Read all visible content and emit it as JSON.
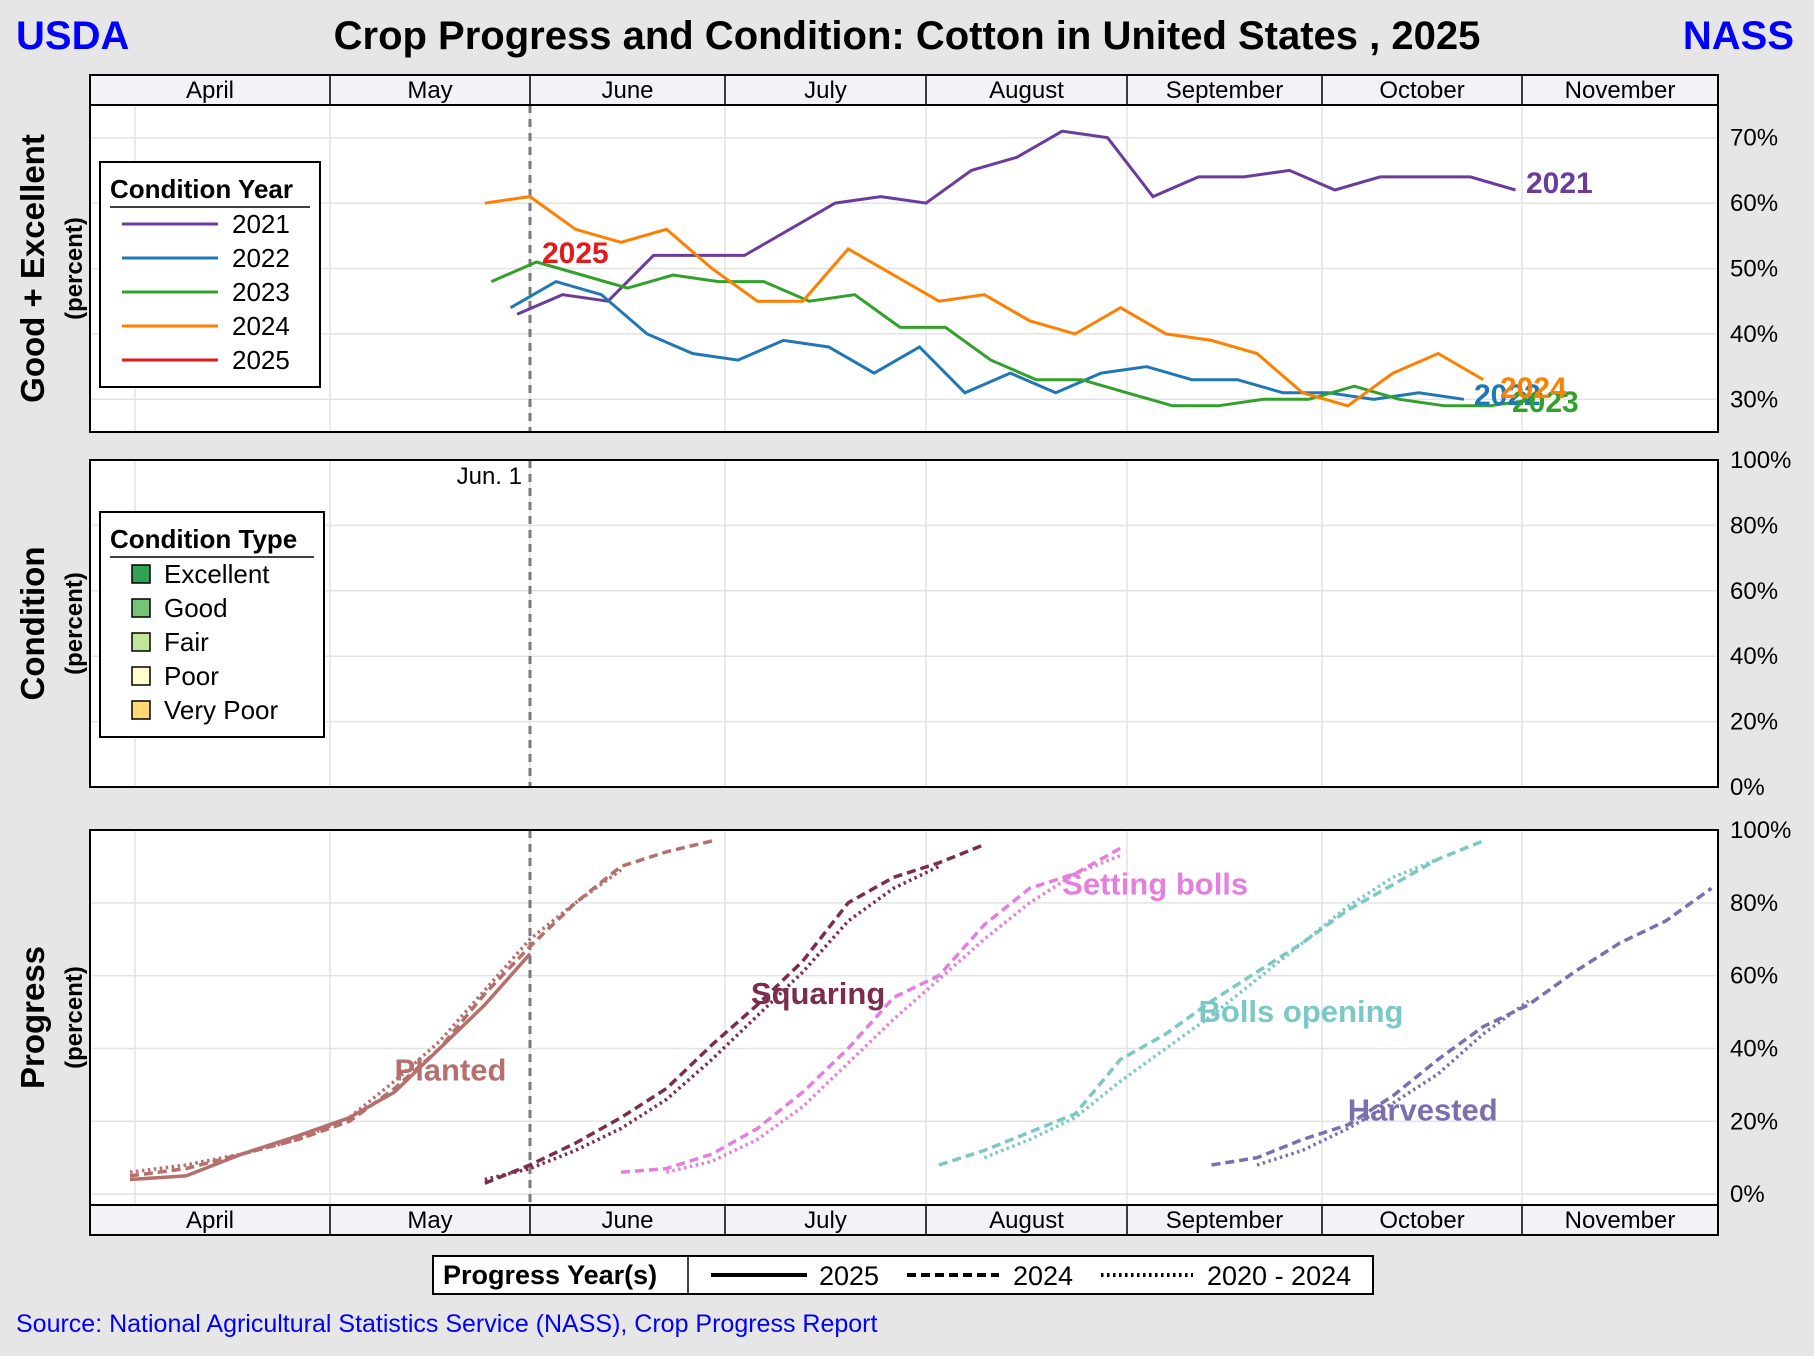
{
  "header": {
    "left_brand": "USDA",
    "right_brand": "NASS",
    "title": "Crop Progress and Condition: Cotton in United States , 2025"
  },
  "source": "Source: National Agricultural Statistics Service (NASS), Crop Progress Report",
  "colors": {
    "background": "#e6e6e6",
    "brand": "#0000ff",
    "y2021": "#6a3d9a",
    "y2022": "#1f78b4",
    "y2023": "#33a02c",
    "y2024": "#ff7f00",
    "y2025": "#e31a1c",
    "planted": "#b5706e",
    "squaring": "#7b2d4f",
    "setting_bolls": "#e47fe0",
    "bolls_opening": "#7bc8c6",
    "harvested": "#7b6fb0",
    "excellent": "#31a354",
    "good": "#74c476",
    "fair": "#c2e699",
    "poor": "#ffffcc",
    "very_poor": "#fed976"
  },
  "chart_data": [
    {
      "id": "good_excellent",
      "type": "line",
      "ylabel": "Good + Excellent",
      "ylabel_sub": "(percent)",
      "x_unit": "day of year",
      "ylim": [
        25,
        75
      ],
      "yticks": [
        30,
        40,
        50,
        60,
        70
      ],
      "ytick_labels": [
        "30%",
        "40%",
        "50%",
        "60%",
        "70%"
      ],
      "months": [
        "April",
        "May",
        "June",
        "July",
        "August",
        "September",
        "October",
        "November"
      ],
      "current_date_marker": 152,
      "legend": {
        "title": "Condition Year",
        "position": "upper-left",
        "entries": [
          "2021",
          "2022",
          "2023",
          "2024",
          "2025"
        ]
      },
      "series": [
        {
          "name": "2021",
          "color": "#6a3d9a",
          "end_label": "2021",
          "points": [
            [
              150,
              43
            ],
            [
              157,
              46
            ],
            [
              164,
              45
            ],
            [
              171,
              52
            ],
            [
              178,
              52
            ],
            [
              185,
              52
            ],
            [
              192,
              56
            ],
            [
              199,
              60
            ],
            [
              206,
              61
            ],
            [
              213,
              60
            ],
            [
              220,
              65
            ],
            [
              227,
              67
            ],
            [
              234,
              71
            ],
            [
              241,
              70
            ],
            [
              248,
              61
            ],
            [
              255,
              64
            ],
            [
              262,
              64
            ],
            [
              269,
              65
            ],
            [
              276,
              62
            ],
            [
              283,
              64
            ],
            [
              290,
              64
            ],
            [
              297,
              64
            ],
            [
              304,
              62
            ]
          ]
        },
        {
          "name": "2022",
          "color": "#1f78b4",
          "end_label": "2022",
          "points": [
            [
              149,
              44
            ],
            [
              156,
              48
            ],
            [
              163,
              46
            ],
            [
              170,
              40
            ],
            [
              177,
              37
            ],
            [
              184,
              36
            ],
            [
              191,
              39
            ],
            [
              198,
              38
            ],
            [
              205,
              34
            ],
            [
              212,
              38
            ],
            [
              219,
              31
            ],
            [
              226,
              34
            ],
            [
              233,
              31
            ],
            [
              240,
              34
            ],
            [
              247,
              35
            ],
            [
              254,
              33
            ],
            [
              261,
              33
            ],
            [
              268,
              31
            ],
            [
              275,
              31
            ],
            [
              282,
              30
            ],
            [
              289,
              31
            ],
            [
              296,
              30
            ]
          ]
        },
        {
          "name": "2023",
          "color": "#33a02c",
          "end_label": "2023",
          "points": [
            [
              146,
              48
            ],
            [
              153,
              51
            ],
            [
              160,
              49
            ],
            [
              167,
              47
            ],
            [
              174,
              49
            ],
            [
              181,
              48
            ],
            [
              188,
              48
            ],
            [
              195,
              45
            ],
            [
              202,
              46
            ],
            [
              209,
              41
            ],
            [
              216,
              41
            ],
            [
              223,
              36
            ],
            [
              230,
              33
            ],
            [
              237,
              33
            ],
            [
              244,
              31
            ],
            [
              251,
              29
            ],
            [
              258,
              29
            ],
            [
              265,
              30
            ],
            [
              272,
              30
            ],
            [
              279,
              32
            ],
            [
              286,
              30
            ],
            [
              293,
              29
            ],
            [
              300,
              29
            ],
            [
              307,
              30
            ]
          ]
        },
        {
          "name": "2024",
          "color": "#ff7f00",
          "end_label": "2024",
          "points": [
            [
              145,
              60
            ],
            [
              152,
              61
            ],
            [
              159,
              56
            ],
            [
              166,
              54
            ],
            [
              173,
              56
            ],
            [
              180,
              50
            ],
            [
              187,
              45
            ],
            [
              194,
              45
            ],
            [
              201,
              53
            ],
            [
              208,
              49
            ],
            [
              215,
              45
            ],
            [
              222,
              46
            ],
            [
              229,
              42
            ],
            [
              236,
              40
            ],
            [
              243,
              44
            ],
            [
              250,
              40
            ],
            [
              257,
              39
            ],
            [
              264,
              37
            ],
            [
              271,
              31
            ],
            [
              278,
              29
            ],
            [
              285,
              34
            ],
            [
              292,
              37
            ],
            [
              299,
              33
            ]
          ]
        },
        {
          "name": "2025",
          "color": "#e31a1c",
          "end_label": "2025",
          "points": []
        }
      ]
    },
    {
      "id": "condition",
      "type": "area",
      "ylabel": "Condition",
      "ylabel_sub": "(percent)",
      "ylim": [
        0,
        100
      ],
      "yticks": [
        0,
        20,
        40,
        60,
        80,
        100
      ],
      "ytick_labels": [
        "0%",
        "20%",
        "40%",
        "60%",
        "80%",
        "100%"
      ],
      "date_marker_label": "Jun.  1",
      "legend": {
        "title": "Condition Type",
        "position": "upper-left",
        "entries": [
          {
            "name": "Excellent",
            "color": "#31a354"
          },
          {
            "name": "Good",
            "color": "#74c476"
          },
          {
            "name": "Fair",
            "color": "#c2e699"
          },
          {
            "name": "Poor",
            "color": "#ffffcc"
          },
          {
            "name": "Very Poor",
            "color": "#fed976"
          }
        ]
      },
      "series": []
    },
    {
      "id": "progress",
      "type": "line",
      "ylabel": "Progress",
      "ylabel_sub": "(percent)",
      "ylim": [
        -3,
        100
      ],
      "yticks": [
        0,
        20,
        40,
        60,
        80,
        100
      ],
      "ytick_labels": [
        "0%",
        "20%",
        "40%",
        "60%",
        "80%",
        "100%"
      ],
      "months": [
        "April",
        "May",
        "June",
        "July",
        "August",
        "September",
        "October",
        "November"
      ],
      "legend": {
        "title": "Progress Year(s)",
        "position": "bottom",
        "entries": [
          {
            "name": "2025",
            "style": "solid"
          },
          {
            "name": "2024",
            "style": "dashed"
          },
          {
            "name": "2020 - 2024",
            "style": "dotted"
          }
        ]
      },
      "stages": [
        {
          "name": "Planted",
          "color": "#b5706e",
          "label_at": [
            131,
            34
          ],
          "y2025": [
            [
              96,
              4
            ],
            [
              103,
              5
            ],
            [
              110,
              11
            ],
            [
              117,
              16
            ],
            [
              124,
              21
            ],
            [
              131,
              28
            ],
            [
              138,
              40
            ],
            [
              145,
              52
            ],
            [
              152,
              66
            ]
          ],
          "y2024": [
            [
              96,
              5
            ],
            [
              103,
              7
            ],
            [
              110,
              11
            ],
            [
              117,
              15
            ],
            [
              124,
              20
            ],
            [
              131,
              29
            ],
            [
              138,
              40
            ],
            [
              145,
              55
            ],
            [
              152,
              68
            ],
            [
              159,
              80
            ],
            [
              166,
              90
            ],
            [
              173,
              94
            ],
            [
              180,
              97
            ]
          ],
          "avg": [
            [
              96,
              6
            ],
            [
              103,
              8
            ],
            [
              110,
              11
            ],
            [
              117,
              15
            ],
            [
              124,
              21
            ],
            [
              131,
              31
            ],
            [
              138,
              42
            ],
            [
              145,
              56
            ],
            [
              152,
              70
            ],
            [
              159,
              80
            ],
            [
              166,
              89
            ]
          ]
        },
        {
          "name": "Squaring",
          "color": "#7b2d4f",
          "label_at": [
            186,
            55
          ],
          "y2024": [
            [
              145,
              3
            ],
            [
              152,
              8
            ],
            [
              159,
              14
            ],
            [
              166,
              21
            ],
            [
              173,
              29
            ],
            [
              180,
              41
            ],
            [
              187,
              52
            ],
            [
              194,
              64
            ],
            [
              201,
              80
            ],
            [
              208,
              87
            ],
            [
              215,
              91
            ],
            [
              222,
              96
            ]
          ],
          "avg": [
            [
              145,
              4
            ],
            [
              152,
              7
            ],
            [
              159,
              12
            ],
            [
              166,
              18
            ],
            [
              173,
              26
            ],
            [
              180,
              37
            ],
            [
              187,
              49
            ],
            [
              194,
              61
            ],
            [
              201,
              75
            ],
            [
              208,
              84
            ],
            [
              215,
              90
            ]
          ]
        },
        {
          "name": "Setting bolls",
          "color": "#e47fe0",
          "label_at": [
            234,
            85
          ],
          "y2024": [
            [
              166,
              6
            ],
            [
              173,
              7
            ],
            [
              180,
              11
            ],
            [
              187,
              18
            ],
            [
              194,
              28
            ],
            [
              201,
              40
            ],
            [
              208,
              54
            ],
            [
              215,
              60
            ],
            [
              222,
              74
            ],
            [
              229,
              84
            ],
            [
              236,
              88
            ],
            [
              243,
              95
            ]
          ],
          "avg": [
            [
              173,
              6
            ],
            [
              180,
              9
            ],
            [
              187,
              15
            ],
            [
              194,
              24
            ],
            [
              201,
              36
            ],
            [
              208,
              48
            ],
            [
              215,
              59
            ],
            [
              222,
              70
            ],
            [
              229,
              80
            ],
            [
              236,
              88
            ],
            [
              243,
              93
            ]
          ]
        },
        {
          "name": "Bolls opening",
          "color": "#7bc8c6",
          "label_at": [
            255,
            50
          ],
          "y2024": [
            [
              215,
              8
            ],
            [
              222,
              12
            ],
            [
              229,
              17
            ],
            [
              236,
              22
            ],
            [
              243,
              37
            ],
            [
              250,
              44
            ],
            [
              257,
              53
            ],
            [
              264,
              61
            ],
            [
              271,
              69
            ],
            [
              278,
              78
            ],
            [
              285,
              85
            ],
            [
              292,
              92
            ],
            [
              299,
              97
            ]
          ],
          "avg": [
            [
              222,
              10
            ],
            [
              229,
              15
            ],
            [
              236,
              21
            ],
            [
              243,
              31
            ],
            [
              250,
              40
            ],
            [
              257,
              49
            ],
            [
              264,
              59
            ],
            [
              271,
              69
            ],
            [
              278,
              79
            ],
            [
              285,
              87
            ],
            [
              292,
              92
            ]
          ]
        },
        {
          "name": "Harvested",
          "color": "#7b6fb0",
          "label_at": [
            278,
            23
          ],
          "y2024": [
            [
              257,
              8
            ],
            [
              264,
              10
            ],
            [
              271,
              15
            ],
            [
              278,
              19
            ],
            [
              285,
              27
            ],
            [
              292,
              37
            ],
            [
              299,
              46
            ],
            [
              306,
              52
            ],
            [
              313,
              61
            ],
            [
              320,
              69
            ],
            [
              327,
              75
            ],
            [
              334,
              84
            ]
          ],
          "avg": [
            [
              264,
              8
            ],
            [
              271,
              12
            ],
            [
              278,
              18
            ],
            [
              285,
              25
            ],
            [
              292,
              33
            ],
            [
              299,
              44
            ],
            [
              306,
              53
            ]
          ]
        }
      ]
    }
  ]
}
